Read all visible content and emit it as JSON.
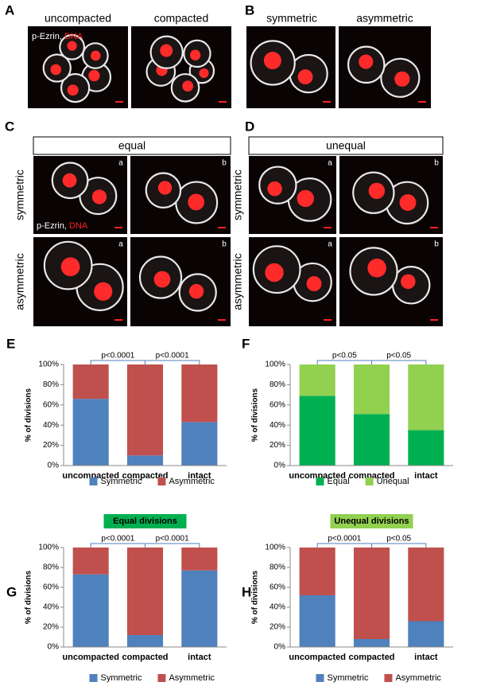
{
  "image_panels": [
    {
      "letter": "A",
      "columns": [
        "uncompacted",
        "compacted"
      ],
      "stain_label": "p-Ezrin,",
      "stain_dna": "DNA"
    },
    {
      "letter": "B",
      "columns": [
        "symmetric",
        "asymmetric"
      ]
    },
    {
      "letter": "C",
      "header": "equal",
      "rows": [
        "symmetric",
        "asymmetric"
      ],
      "subpanels": [
        "a",
        "b"
      ],
      "stain_label": "p-Ezrin,",
      "stain_dna": "DNA"
    },
    {
      "letter": "D",
      "header": "unequal",
      "rows": [
        "symmetric",
        "asymmetric"
      ],
      "subpanels": [
        "a",
        "b"
      ]
    }
  ],
  "chart_data": [
    {
      "type": "bar",
      "stacked": true,
      "panel_label": "E",
      "ylabel": "% of divisions",
      "categories": [
        "uncompacted",
        "compacted",
        "intact"
      ],
      "series": [
        {
          "name": "Symmetric",
          "color": "#4f81bd",
          "values": [
            66,
            10,
            43
          ]
        },
        {
          "name": "Asymmetric",
          "color": "#c0504d",
          "values": [
            34,
            90,
            57
          ]
        }
      ],
      "ylim": [
        0,
        100
      ],
      "yticks": [
        {
          "value": 0,
          "label": "0%"
        },
        {
          "value": 20,
          "label": "20%"
        },
        {
          "value": 40,
          "label": "40%"
        },
        {
          "value": 60,
          "label": "60%"
        },
        {
          "value": 80,
          "label": "80%"
        },
        {
          "value": 100,
          "label": "100%"
        }
      ],
      "annotations": [
        "p<0.0001",
        "p<0.0001"
      ]
    },
    {
      "type": "bar",
      "stacked": true,
      "panel_label": "F",
      "ylabel": "% of divisions",
      "categories": [
        "uncompacted",
        "compacted",
        "intact"
      ],
      "series": [
        {
          "name": "Equal",
          "color": "#00b050",
          "values": [
            69,
            51,
            35
          ]
        },
        {
          "name": "Unequal",
          "color": "#92d050",
          "values": [
            31,
            49,
            65
          ]
        }
      ],
      "ylim": [
        0,
        100
      ],
      "yticks": [
        {
          "value": 0,
          "label": "0%"
        },
        {
          "value": 20,
          "label": "20%"
        },
        {
          "value": 40,
          "label": "40%"
        },
        {
          "value": 60,
          "label": "60%"
        },
        {
          "value": 80,
          "label": "80%"
        },
        {
          "value": 100,
          "label": "100%"
        }
      ],
      "annotations": [
        "p<0.05",
        "p<0.05"
      ]
    },
    {
      "type": "bar",
      "stacked": true,
      "panel_label": "G",
      "title": "Equal divisions",
      "title_color": "#00b050",
      "ylabel": "% of divisions",
      "categories": [
        "uncompacted",
        "compacted",
        "intact"
      ],
      "series": [
        {
          "name": "Symmetric",
          "color": "#4f81bd",
          "values": [
            73,
            12,
            77
          ]
        },
        {
          "name": "Asymmetric",
          "color": "#c0504d",
          "values": [
            27,
            88,
            23
          ]
        }
      ],
      "ylim": [
        0,
        100
      ],
      "yticks": [
        {
          "value": 0,
          "label": "0%"
        },
        {
          "value": 20,
          "label": "20%"
        },
        {
          "value": 40,
          "label": "40%"
        },
        {
          "value": 60,
          "label": "60%"
        },
        {
          "value": 80,
          "label": "80%"
        },
        {
          "value": 100,
          "label": "100%"
        }
      ],
      "annotations": [
        "p<0.0001",
        "p<0.0001"
      ]
    },
    {
      "type": "bar",
      "stacked": true,
      "panel_label": "H",
      "title": "Unequal divisions",
      "title_color": "#92d050",
      "ylabel": "% of divisions",
      "categories": [
        "uncompacted",
        "compacted",
        "intact"
      ],
      "series": [
        {
          "name": "Symmetric",
          "color": "#4f81bd",
          "values": [
            52,
            8,
            26
          ]
        },
        {
          "name": "Asymmetric",
          "color": "#c0504d",
          "values": [
            48,
            92,
            74
          ]
        }
      ],
      "ylim": [
        0,
        100
      ],
      "yticks": [
        {
          "value": 0,
          "label": "0%"
        },
        {
          "value": 20,
          "label": "20%"
        },
        {
          "value": 40,
          "label": "40%"
        },
        {
          "value": 60,
          "label": "60%"
        },
        {
          "value": 80,
          "label": "80%"
        },
        {
          "value": 100,
          "label": "100%"
        }
      ],
      "annotations": [
        "p<0.0001",
        "p<0.05"
      ]
    }
  ]
}
